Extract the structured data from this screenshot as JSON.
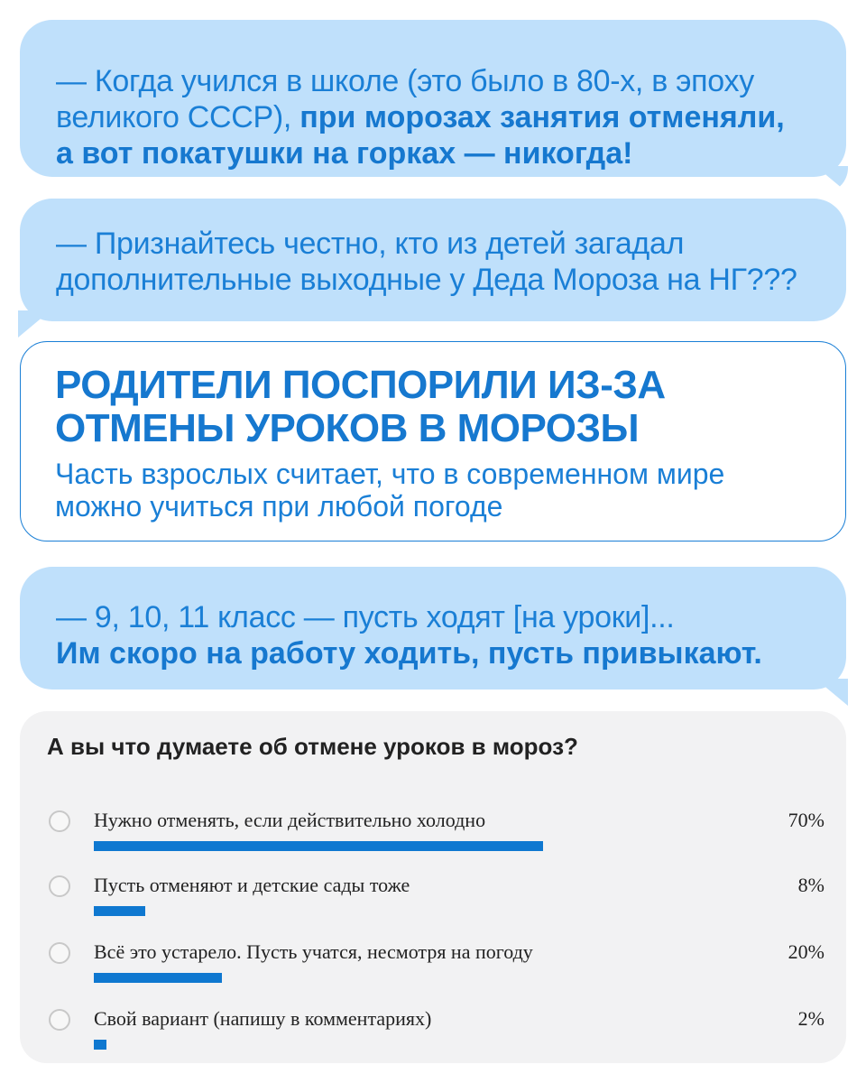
{
  "quotes": [
    {
      "id": "q1",
      "normal": "— Когда учился в школе (это было в 80-х, в эпоху великого СССР), ",
      "bold": "при морозах занятия отменяли, а вот покатушки на горках — никогда!"
    },
    {
      "id": "q2",
      "normal": "— Признайтесь честно, кто из детей загадал дополнительные выходные у Деда Мороза на НГ???",
      "bold": ""
    },
    {
      "id": "q3",
      "normal": "— 9, 10, 11 класс — пусть ходят [на уроки]...",
      "bold": "Им скоро на работу ходить, пусть привыкают."
    }
  ],
  "headline": {
    "title": "РОДИТЕЛИ ПОСПОРИЛИ ИЗ-ЗА ОТМЕНЫ УРОКОВ В МОРОЗЫ",
    "subtitle": "Часть взрослых считает, что в современном мире можно учиться при любой погоде"
  },
  "poll": {
    "question": "А вы что думаете об отмене уроков в мороз?",
    "options": [
      {
        "label": "Нужно отменять, если действительно холодно",
        "percent_label": "70%",
        "percent": 70
      },
      {
        "label": "Пусть отменяют и детские сады тоже",
        "percent_label": "8%",
        "percent": 8
      },
      {
        "label": "Всё это устарело. Пусть учатся, несмотря на погоду",
        "percent_label": "20%",
        "percent": 20
      },
      {
        "label": "Свой вариант (напишу в комментариях)",
        "percent_label": "2%",
        "percent": 2
      }
    ]
  },
  "colors": {
    "bubble": "#bfe0fb",
    "accent": "#1678cf",
    "bar": "#0f78d0",
    "poll_bg": "#f2f2f3"
  }
}
